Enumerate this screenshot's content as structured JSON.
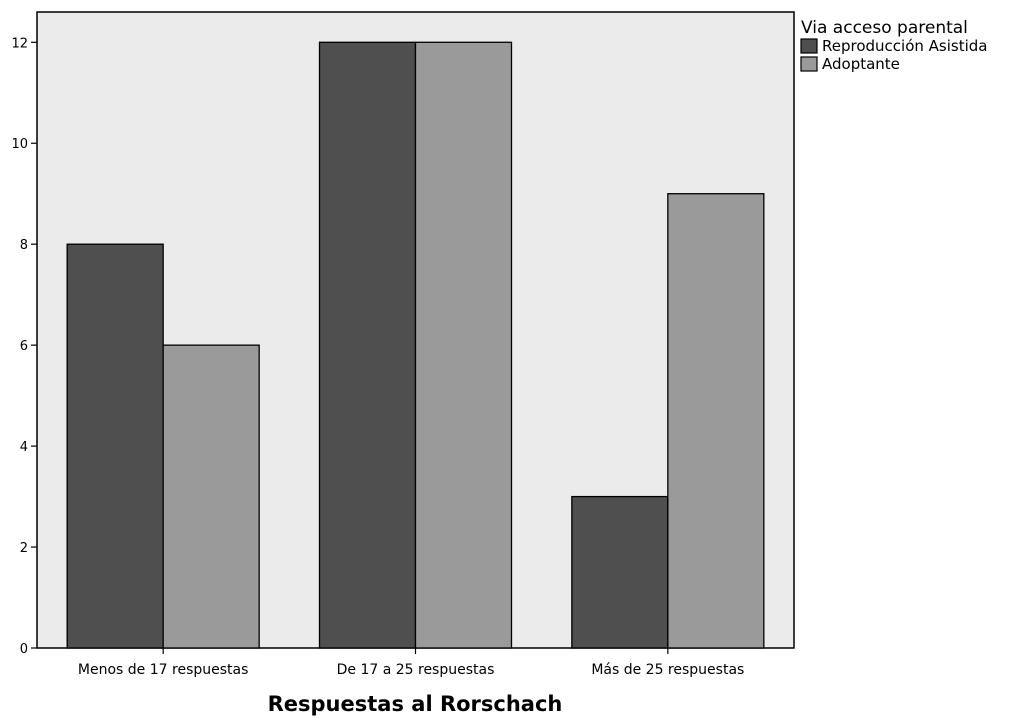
{
  "chart_data": {
    "type": "bar",
    "categories": [
      "Menos de 17 respuestas",
      "De 17 a 25 respuestas",
      "Más de 25 respuestas"
    ],
    "series": [
      {
        "name": "Reproducción Asistida",
        "values": [
          8,
          12,
          3
        ],
        "color": "#4f4f4f"
      },
      {
        "name": "Adoptante",
        "values": [
          6,
          12,
          9
        ],
        "color": "#9a9a9a"
      }
    ],
    "xlabel": "Respuestas al Rorschach",
    "ylabel": "",
    "ylim": [
      0,
      12.6
    ],
    "yticks": [
      0,
      2,
      4,
      6,
      8,
      10,
      12
    ],
    "legend_title": "Via acceso parental",
    "legend_position": "top-right",
    "plot_background": "#ebebeb",
    "grid": false
  }
}
